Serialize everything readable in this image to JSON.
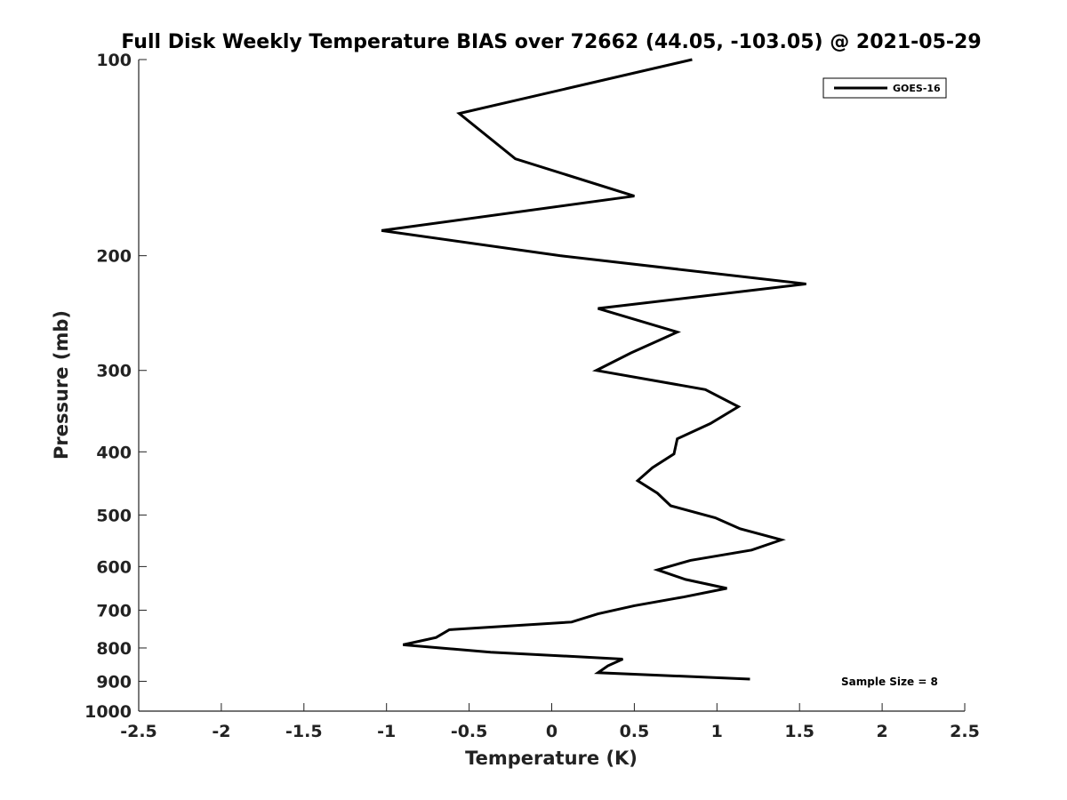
{
  "chart_data": {
    "type": "line",
    "title": "Full Disk Weekly Temperature BIAS over 72662 (44.05, -103.05) @ 2021-05-29",
    "xlabel": "Temperature (K)",
    "ylabel": "Pressure (mb)",
    "xlim": [
      -2.5,
      2.5
    ],
    "ylim": [
      1000,
      100
    ],
    "y_scale": "log",
    "x_ticks": [
      -2.5,
      -2,
      -1.5,
      -1,
      -0.5,
      0,
      0.5,
      1,
      1.5,
      2,
      2.5
    ],
    "x_tick_labels": [
      "-2.5",
      "-2",
      "-1.5",
      "-1",
      "-0.5",
      "0",
      "0.5",
      "1",
      "1.5",
      "2",
      "2.5"
    ],
    "y_ticks": [
      100,
      200,
      300,
      400,
      500,
      600,
      700,
      800,
      900,
      1000
    ],
    "y_tick_labels": [
      "100",
      "200",
      "300",
      "400",
      "500",
      "600",
      "700",
      "800",
      "900",
      "1000"
    ],
    "grid": false,
    "legend_position": "top-right",
    "series": [
      {
        "name": "GOES-16",
        "color": "#000000",
        "x": [
          0.85,
          -0.56,
          -0.22,
          0.5,
          -1.03,
          0.05,
          1.54,
          0.28,
          0.76,
          0.48,
          0.27,
          0.93,
          1.13,
          0.96,
          0.76,
          0.74,
          0.61,
          0.52,
          0.64,
          0.72,
          0.99,
          1.14,
          1.39,
          1.21,
          0.84,
          0.64,
          0.81,
          1.06,
          0.8,
          0.5,
          0.28,
          0.12,
          -0.62,
          -0.7,
          -0.9,
          -0.37,
          0.43,
          0.34,
          0.28,
          1.2
        ],
        "y": [
          100,
          121,
          142,
          162,
          183,
          200,
          221,
          241,
          262,
          282,
          300,
          321,
          341,
          362,
          382,
          403,
          423,
          443,
          463,
          484,
          505,
          525,
          546,
          566,
          587,
          607,
          628,
          648,
          668,
          689,
          709,
          730,
          750,
          771,
          791,
          812,
          832,
          852,
          873,
          893
        ]
      }
    ],
    "annotations": [
      "Sample Size = 8"
    ]
  }
}
